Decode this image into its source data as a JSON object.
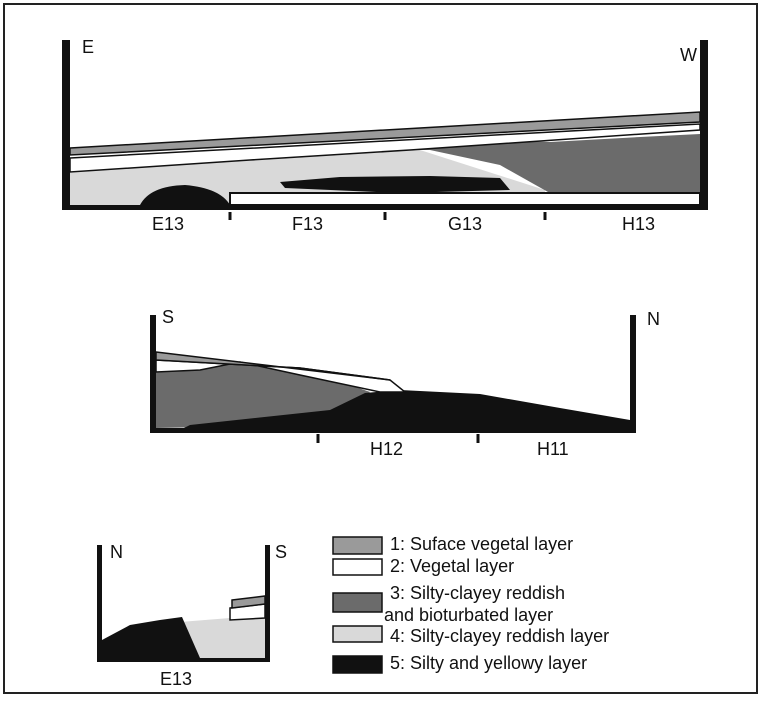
{
  "profiles": [
    {
      "left": "E",
      "right": "W",
      "squares": [
        "E13",
        "F13",
        "G13",
        "H13"
      ]
    },
    {
      "left": "S",
      "right": "N",
      "squares": [
        "H12",
        "H11"
      ]
    },
    {
      "left": "N",
      "right": "S",
      "squares": [
        "E13"
      ]
    }
  ],
  "legend": [
    {
      "lines": [
        "1: Suface vegetal layer"
      ]
    },
    {
      "lines": [
        "2: Vegetal layer"
      ]
    },
    {
      "lines": [
        "3: Silty-clayey reddish",
        "and bioturbated layer"
      ]
    },
    {
      "lines": [
        "4: Silty-clayey reddish layer"
      ]
    },
    {
      "lines": [
        "5: Silty and yellowy layer"
      ]
    }
  ]
}
